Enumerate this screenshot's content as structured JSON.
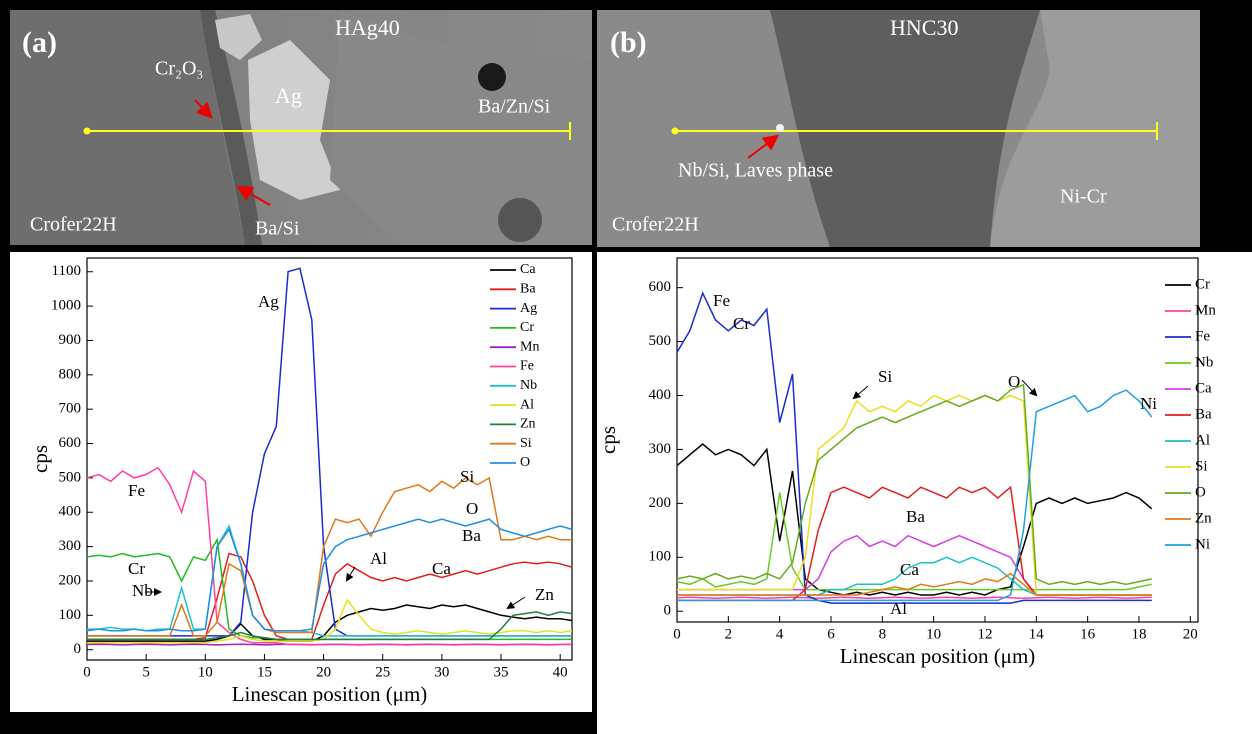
{
  "images": [
    {
      "labels": [
        "(a)",
        "HAg40",
        "Cr₂O₃",
        "Ag",
        "Ba/Zn/Si",
        "Crofer22H",
        "Ba/Si"
      ]
    },
    {
      "labels": [
        "(b)",
        "HNC30",
        "Nb/Si, Laves phase",
        "Crofer22H",
        "Ni-Cr"
      ]
    }
  ],
  "chart_data": [
    {
      "type": "line",
      "xlabel": "Linescan position (μm)",
      "ylabel": "cps",
      "xlim": [
        0,
        41
      ],
      "ylim": [
        -30,
        1140
      ],
      "xticks": [
        0,
        5,
        10,
        15,
        20,
        25,
        30,
        35,
        40
      ],
      "yticks": [
        0,
        100,
        200,
        300,
        400,
        500,
        600,
        700,
        800,
        900,
        1000,
        1100
      ],
      "annotations": [
        "Fe",
        "Cr",
        "Nb",
        "Ag",
        "Si",
        "O",
        "Ba",
        "Al",
        "Ca",
        "Zn"
      ],
      "x": [
        0,
        1,
        2,
        3,
        4,
        5,
        6,
        7,
        8,
        9,
        10,
        11,
        12,
        13,
        14,
        15,
        16,
        17,
        18,
        19,
        20,
        21,
        22,
        23,
        24,
        25,
        26,
        27,
        28,
        29,
        30,
        31,
        32,
        33,
        34,
        35,
        36,
        37,
        38,
        39,
        40,
        41
      ],
      "series": [
        {
          "name": "Ca",
          "color": "#000000",
          "values": [
            25,
            25,
            25,
            25,
            25,
            25,
            25,
            25,
            25,
            25,
            25,
            30,
            40,
            75,
            40,
            30,
            30,
            25,
            25,
            25,
            40,
            80,
            100,
            110,
            120,
            115,
            120,
            130,
            125,
            120,
            130,
            125,
            130,
            120,
            110,
            100,
            95,
            90,
            95,
            90,
            90,
            85
          ]
        },
        {
          "name": "Ba",
          "color": "#e02020",
          "values": [
            30,
            30,
            30,
            30,
            30,
            30,
            30,
            30,
            30,
            30,
            35,
            150,
            280,
            270,
            200,
            100,
            40,
            30,
            30,
            30,
            130,
            220,
            250,
            230,
            210,
            200,
            210,
            200,
            210,
            220,
            210,
            220,
            230,
            220,
            230,
            240,
            250,
            255,
            250,
            255,
            250,
            240
          ]
        },
        {
          "name": "Ag",
          "color": "#1a2ccc",
          "values": [
            40,
            40,
            40,
            40,
            40,
            40,
            40,
            40,
            40,
            40,
            40,
            40,
            40,
            80,
            400,
            570,
            650,
            1100,
            1110,
            960,
            300,
            60,
            40,
            40,
            40,
            40,
            40,
            40,
            40,
            40,
            40,
            40,
            40,
            40,
            40,
            40,
            40,
            40,
            40,
            40,
            40,
            40
          ]
        },
        {
          "name": "Cr",
          "color": "#22bb22",
          "values": [
            270,
            275,
            270,
            280,
            270,
            275,
            280,
            270,
            200,
            270,
            260,
            320,
            60,
            40,
            35,
            35,
            30,
            30,
            30,
            30,
            30,
            30,
            30,
            30,
            30,
            30,
            30,
            30,
            30,
            30,
            30,
            30,
            30,
            30,
            30,
            30,
            30,
            30,
            30,
            30,
            30,
            30
          ]
        },
        {
          "name": "Mn",
          "color": "#a020c0",
          "values": [
            15,
            16,
            15,
            14,
            15,
            16,
            15,
            14,
            15,
            16,
            15,
            14,
            15,
            16,
            15,
            14,
            15,
            16,
            15,
            14,
            15,
            16,
            15,
            14,
            15,
            16,
            15,
            14,
            15,
            16,
            15,
            14,
            15,
            16,
            15,
            14,
            15,
            16,
            15,
            14,
            15,
            16
          ]
        },
        {
          "name": "Fe",
          "color": "#ff40a0",
          "values": [
            500,
            510,
            490,
            520,
            500,
            510,
            530,
            480,
            400,
            520,
            490,
            80,
            50,
            30,
            20,
            20,
            20,
            15,
            15,
            15,
            15,
            15,
            15,
            15,
            15,
            15,
            15,
            15,
            15,
            15,
            15,
            15,
            15,
            15,
            15,
            15,
            15,
            15,
            15,
            15,
            15,
            15
          ]
        },
        {
          "name": "Nb",
          "color": "#20c0d0",
          "values": [
            60,
            60,
            65,
            60,
            60,
            55,
            60,
            60,
            180,
            60,
            60,
            300,
            360,
            250,
            100,
            60,
            55,
            55,
            55,
            50,
            40,
            40,
            40,
            40,
            40,
            40,
            40,
            40,
            40,
            40,
            40,
            40,
            40,
            40,
            40,
            40,
            40,
            40,
            40,
            40,
            40,
            40
          ]
        },
        {
          "name": "Al",
          "color": "#e8e020",
          "values": [
            20,
            20,
            20,
            20,
            20,
            20,
            20,
            20,
            20,
            20,
            20,
            25,
            30,
            40,
            30,
            25,
            25,
            25,
            25,
            25,
            30,
            60,
            145,
            100,
            60,
            50,
            45,
            50,
            55,
            50,
            45,
            50,
            55,
            50,
            45,
            50,
            55,
            55,
            50,
            55,
            50,
            55
          ]
        },
        {
          "name": "Zn",
          "color": "#208040",
          "values": [
            30,
            30,
            30,
            30,
            30,
            30,
            30,
            30,
            30,
            30,
            30,
            35,
            40,
            50,
            40,
            35,
            30,
            30,
            30,
            30,
            30,
            30,
            30,
            30,
            30,
            30,
            30,
            30,
            30,
            30,
            30,
            30,
            30,
            30,
            30,
            60,
            100,
            105,
            110,
            100,
            110,
            105
          ]
        },
        {
          "name": "Si",
          "color": "#e07818",
          "values": [
            40,
            40,
            40,
            40,
            40,
            40,
            40,
            40,
            130,
            40,
            40,
            80,
            250,
            230,
            100,
            60,
            50,
            50,
            50,
            50,
            300,
            380,
            370,
            380,
            330,
            400,
            460,
            470,
            480,
            460,
            490,
            470,
            500,
            480,
            500,
            320,
            320,
            330,
            320,
            330,
            320,
            320
          ]
        },
        {
          "name": "O",
          "color": "#2090e0",
          "values": [
            55,
            60,
            55,
            55,
            60,
            55,
            55,
            60,
            55,
            55,
            60,
            300,
            350,
            250,
            100,
            60,
            55,
            55,
            55,
            60,
            250,
            300,
            320,
            330,
            340,
            350,
            360,
            370,
            380,
            370,
            380,
            370,
            360,
            370,
            380,
            350,
            340,
            330,
            340,
            350,
            360,
            350
          ]
        }
      ]
    },
    {
      "type": "line",
      "xlabel": "Linescan position (μm)",
      "ylabel": "cps",
      "xlim": [
        0,
        20.3
      ],
      "ylim": [
        -20,
        655
      ],
      "xticks": [
        0,
        2,
        4,
        6,
        8,
        10,
        12,
        14,
        16,
        18,
        20
      ],
      "yticks": [
        0,
        100,
        200,
        300,
        400,
        500,
        600
      ],
      "annotations": [
        "Fe",
        "Cr",
        "Si",
        "O",
        "Ni",
        "Ba",
        "Ca",
        "Al"
      ],
      "x": [
        0,
        0.5,
        1,
        1.5,
        2,
        2.5,
        3,
        3.5,
        4,
        4.5,
        5,
        5.5,
        6,
        6.5,
        7,
        7.5,
        8,
        8.5,
        9,
        9.5,
        10,
        10.5,
        11,
        11.5,
        12,
        12.5,
        13,
        13.5,
        14,
        14.5,
        15,
        15.5,
        16,
        16.5,
        17,
        17.5,
        18,
        18.5
      ],
      "series": [
        {
          "name": "Cr",
          "color": "#000000",
          "values": [
            270,
            290,
            310,
            290,
            300,
            290,
            270,
            300,
            130,
            260,
            60,
            40,
            35,
            30,
            35,
            30,
            35,
            30,
            35,
            30,
            30,
            35,
            30,
            35,
            30,
            40,
            45,
            120,
            200,
            210,
            200,
            210,
            200,
            205,
            210,
            220,
            210,
            190
          ]
        },
        {
          "name": "Mn",
          "color": "#ff40a0",
          "values": [
            25,
            26,
            25,
            24,
            25,
            26,
            25,
            24,
            25,
            26,
            25,
            24,
            25,
            26,
            25,
            24,
            25,
            26,
            25,
            24,
            25,
            26,
            25,
            24,
            25,
            26,
            25,
            24,
            25,
            26,
            25,
            24,
            25,
            26,
            25,
            24,
            25,
            26
          ]
        },
        {
          "name": "Fe",
          "color": "#1a2ccc",
          "values": [
            480,
            520,
            590,
            540,
            520,
            540,
            530,
            560,
            350,
            440,
            30,
            20,
            15,
            15,
            15,
            15,
            15,
            15,
            15,
            15,
            15,
            15,
            15,
            15,
            15,
            15,
            15,
            20,
            20,
            20,
            20,
            20,
            20,
            20,
            20,
            20,
            20,
            20
          ]
        },
        {
          "name": "Nb",
          "color": "#66cc22",
          "values": [
            55,
            50,
            60,
            45,
            50,
            55,
            50,
            60,
            220,
            80,
            40,
            40,
            40,
            40,
            40,
            40,
            40,
            40,
            40,
            40,
            40,
            40,
            40,
            40,
            40,
            40,
            40,
            40,
            40,
            40,
            40,
            40,
            40,
            40,
            40,
            40,
            45,
            50
          ]
        },
        {
          "name": "Ca",
          "color": "#d040e0",
          "values": [
            40,
            40,
            40,
            40,
            40,
            40,
            40,
            40,
            40,
            40,
            40,
            60,
            110,
            130,
            140,
            120,
            130,
            120,
            140,
            130,
            120,
            130,
            140,
            130,
            120,
            110,
            100,
            60,
            30,
            30,
            30,
            30,
            30,
            30,
            30,
            30,
            30,
            30
          ]
        },
        {
          "name": "Ba",
          "color": "#e02020",
          "values": [
            20,
            20,
            20,
            20,
            20,
            20,
            20,
            20,
            20,
            20,
            40,
            150,
            220,
            230,
            220,
            210,
            230,
            220,
            210,
            230,
            220,
            210,
            230,
            220,
            230,
            210,
            230,
            60,
            30,
            30,
            30,
            30,
            30,
            30,
            30,
            30,
            30,
            30
          ]
        },
        {
          "name": "Al",
          "color": "#20c0c0",
          "values": [
            30,
            30,
            30,
            30,
            30,
            30,
            30,
            30,
            30,
            30,
            30,
            30,
            40,
            40,
            50,
            50,
            50,
            60,
            80,
            90,
            90,
            100,
            90,
            100,
            90,
            80,
            60,
            40,
            30,
            30,
            30,
            30,
            30,
            30,
            30,
            30,
            30,
            30
          ]
        },
        {
          "name": "Si",
          "color": "#e8e020",
          "values": [
            40,
            40,
            40,
            40,
            40,
            40,
            40,
            40,
            40,
            40,
            100,
            300,
            320,
            340,
            390,
            370,
            380,
            370,
            390,
            380,
            400,
            390,
            400,
            390,
            400,
            390,
            400,
            390,
            30,
            30,
            30,
            30,
            30,
            30,
            30,
            30,
            30,
            30
          ]
        },
        {
          "name": "O",
          "color": "#66aa20",
          "values": [
            60,
            65,
            60,
            70,
            60,
            65,
            60,
            70,
            60,
            90,
            200,
            280,
            300,
            320,
            340,
            350,
            360,
            350,
            360,
            370,
            380,
            390,
            380,
            390,
            400,
            390,
            410,
            420,
            60,
            50,
            55,
            50,
            55,
            50,
            55,
            50,
            55,
            60
          ]
        },
        {
          "name": "Zn",
          "color": "#e07818",
          "values": [
            30,
            30,
            30,
            30,
            30,
            30,
            30,
            30,
            30,
            30,
            30,
            30,
            30,
            30,
            30,
            35,
            40,
            45,
            40,
            50,
            45,
            50,
            55,
            50,
            60,
            55,
            70,
            50,
            30,
            30,
            30,
            30,
            30,
            30,
            30,
            30,
            30,
            30
          ]
        },
        {
          "name": "Ni",
          "color": "#20a0e0",
          "values": [
            20,
            20,
            20,
            20,
            20,
            20,
            20,
            20,
            20,
            20,
            20,
            20,
            20,
            20,
            20,
            20,
            20,
            20,
            20,
            20,
            20,
            20,
            20,
            20,
            20,
            20,
            30,
            150,
            370,
            380,
            390,
            400,
            370,
            380,
            400,
            410,
            390,
            360
          ]
        }
      ]
    }
  ]
}
